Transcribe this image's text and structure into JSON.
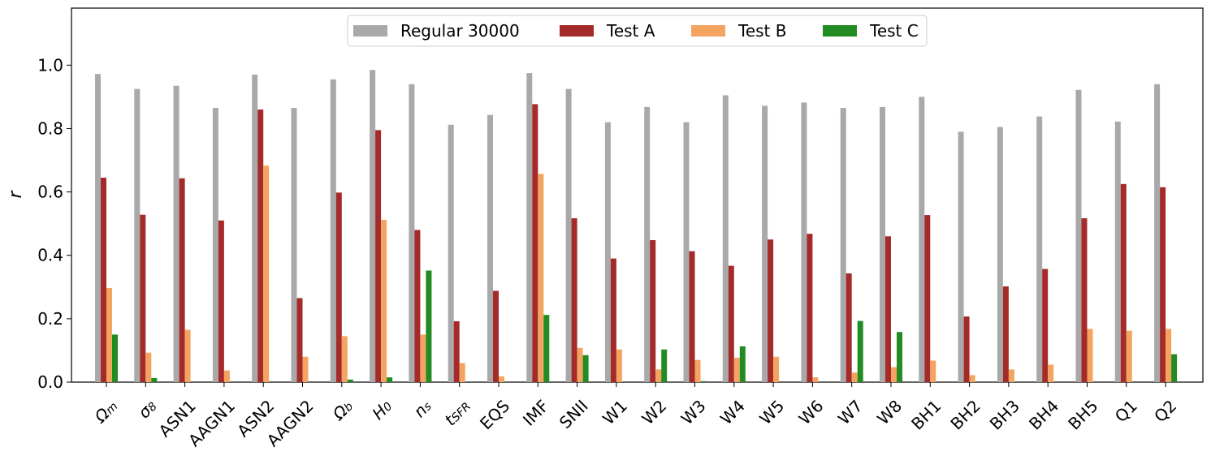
{
  "chart_data": {
    "type": "bar",
    "title": "",
    "xlabel": "",
    "ylabel": "r",
    "ylim": [
      0,
      1.18
    ],
    "yticks": [
      "0.0",
      "0.2",
      "0.4",
      "0.6",
      "0.8",
      "1.0"
    ],
    "grid": false,
    "legend_position": "top-center",
    "categories": [
      "Ωm",
      "σ8",
      "ASN1",
      "AAGN1",
      "ASN2",
      "AAGN2",
      "Ωb",
      "H0",
      "ns",
      "tSFR",
      "EQS",
      "IMF",
      "SNII",
      "W1",
      "W2",
      "W3",
      "W4",
      "W5",
      "W6",
      "W7",
      "W8",
      "BH1",
      "BH2",
      "BH3",
      "BH4",
      "BH5",
      "Q1",
      "Q2"
    ],
    "tick_labels": [
      {
        "main": "Ω",
        "sub": "m"
      },
      {
        "main": "σ",
        "sub": "8"
      },
      {
        "main": "ASN1",
        "sub": ""
      },
      {
        "main": "AAGN1",
        "sub": ""
      },
      {
        "main": "ASN2",
        "sub": ""
      },
      {
        "main": "AAGN2",
        "sub": ""
      },
      {
        "main": "Ω",
        "sub": "b"
      },
      {
        "main": "H",
        "sub": "0"
      },
      {
        "main": "n",
        "sub": "s"
      },
      {
        "main": "t",
        "sub": "SFR"
      },
      {
        "main": "EQS",
        "sub": ""
      },
      {
        "main": "IMF",
        "sub": ""
      },
      {
        "main": "SNII",
        "sub": ""
      },
      {
        "main": "W1",
        "sub": ""
      },
      {
        "main": "W2",
        "sub": ""
      },
      {
        "main": "W3",
        "sub": ""
      },
      {
        "main": "W4",
        "sub": ""
      },
      {
        "main": "W5",
        "sub": ""
      },
      {
        "main": "W6",
        "sub": ""
      },
      {
        "main": "W7",
        "sub": ""
      },
      {
        "main": "W8",
        "sub": ""
      },
      {
        "main": "BH1",
        "sub": ""
      },
      {
        "main": "BH2",
        "sub": ""
      },
      {
        "main": "BH3",
        "sub": ""
      },
      {
        "main": "BH4",
        "sub": ""
      },
      {
        "main": "BH5",
        "sub": ""
      },
      {
        "main": "Q1",
        "sub": ""
      },
      {
        "main": "Q2",
        "sub": ""
      }
    ],
    "series": [
      {
        "name": "Regular 30000",
        "color": "#a9a9a9",
        "values": [
          0.972,
          0.925,
          0.935,
          0.865,
          0.97,
          0.865,
          0.955,
          0.985,
          0.94,
          0.812,
          0.843,
          0.975,
          0.925,
          0.82,
          0.868,
          0.82,
          0.905,
          0.872,
          0.882,
          0.865,
          0.868,
          0.9,
          0.79,
          0.805,
          0.838,
          0.922,
          0.822,
          0.94
        ]
      },
      {
        "name": "Test A",
        "color": "#a52a2a",
        "values": [
          0.645,
          0.528,
          0.643,
          0.51,
          0.86,
          0.265,
          0.598,
          0.795,
          0.48,
          0.192,
          0.288,
          0.877,
          0.517,
          0.39,
          0.448,
          0.413,
          0.367,
          0.45,
          0.468,
          0.343,
          0.46,
          0.527,
          0.207,
          0.302,
          0.357,
          0.517,
          0.625,
          0.615
        ]
      },
      {
        "name": "Test B",
        "color": "#f4a460",
        "values": [
          0.297,
          0.093,
          0.165,
          0.037,
          0.683,
          0.08,
          0.145,
          0.512,
          0.15,
          0.06,
          0.018,
          0.657,
          0.108,
          0.103,
          0.04,
          0.07,
          0.077,
          0.08,
          0.015,
          0.03,
          0.047,
          0.068,
          0.022,
          0.04,
          0.055,
          0.168,
          0.162,
          0.168
        ]
      },
      {
        "name": "Test C",
        "color": "#228b22",
        "values": [
          0.15,
          0.013,
          0.0,
          0.0,
          0.0,
          0.0,
          0.008,
          0.015,
          0.352,
          0.0,
          0.0,
          0.212,
          0.085,
          0.0,
          0.103,
          0.003,
          0.113,
          0.0,
          0.0,
          0.193,
          0.158,
          0.0,
          0.0,
          0.0,
          0.0,
          0.0,
          0.0,
          0.088
        ]
      }
    ]
  }
}
